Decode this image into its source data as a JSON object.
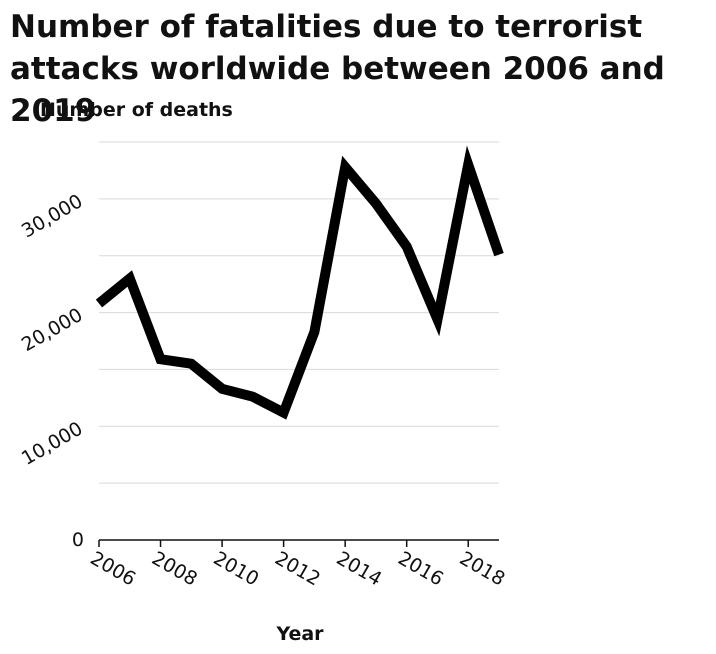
{
  "chart_data": {
    "type": "line",
    "title": "Number of fatalities due to terrorist attacks worldwide between 2006 and 2019",
    "xlabel": "Year",
    "ylabel": "Number of deaths",
    "x": [
      2006,
      2007,
      2008,
      2009,
      2010,
      2011,
      2012,
      2013,
      2014,
      2015,
      2016,
      2017,
      2018,
      2019
    ],
    "series": [
      {
        "values": [
          20800,
          23000,
          15900,
          15500,
          13300,
          12600,
          11200,
          18300,
          32800,
          29600,
          25800,
          19400,
          33000,
          25100
        ]
      }
    ],
    "xlim": [
      2006,
      2019
    ],
    "ylim": [
      0,
      35000
    ],
    "x_ticks": [
      2006,
      2008,
      2010,
      2012,
      2014,
      2016,
      2018
    ],
    "x_tick_labels": [
      "2006",
      "2008",
      "2010",
      "2012",
      "2014",
      "2016",
      "2018"
    ],
    "y_ticks": [
      0,
      10000,
      20000,
      30000
    ],
    "y_tick_labels": [
      "0",
      "10,000",
      "20,000",
      "30,000"
    ],
    "grid": true,
    "line_color": "#000000",
    "grid_color": "#d9d9d9"
  }
}
